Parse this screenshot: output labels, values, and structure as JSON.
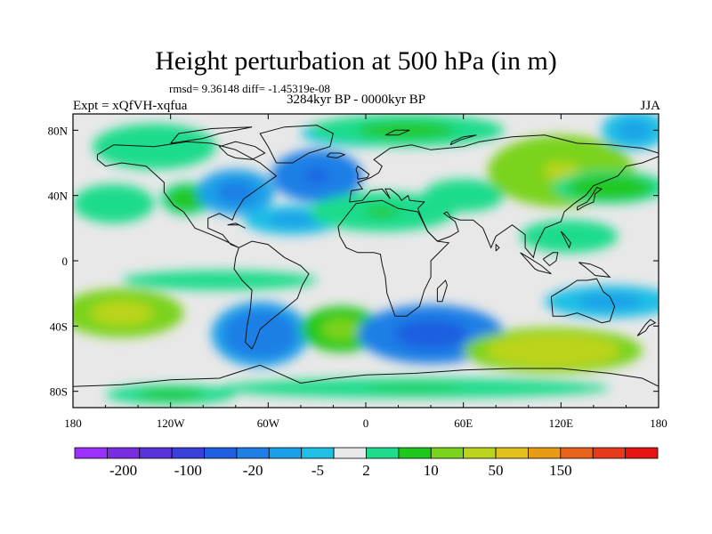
{
  "chart_data": {
    "type": "heatmap",
    "title": "Height perturbation at 500 hPa (in m)",
    "stats": "rmsd= 9.36148 diff= -1.45319e-08",
    "experiment": "Expt = xQfVH-xqfua",
    "period": "3284kyr BP - 0000kyr BP",
    "season": "JJA",
    "x_axis": {
      "ticks": [
        -180,
        -120,
        -60,
        0,
        60,
        120,
        180
      ],
      "labels": [
        "180",
        "120W",
        "60W",
        "0",
        "60E",
        "120E",
        "180"
      ]
    },
    "y_axis": {
      "ticks": [
        80,
        40,
        0,
        -40,
        -80
      ],
      "labels": [
        "80N",
        "40N",
        "0",
        "40S",
        "80S"
      ]
    },
    "xlim": [
      -180,
      180
    ],
    "ylim": [
      -90,
      90
    ],
    "colorbar": {
      "labels": [
        "-200",
        "-100",
        "-20",
        "-5",
        "2",
        "10",
        "50",
        "150"
      ],
      "colors": [
        "#9b30ff",
        "#7a2de0",
        "#5a32dc",
        "#3b3fdc",
        "#1f5fe0",
        "#1f7fe6",
        "#1aa0e8",
        "#1fbfe6",
        "#e8e8e8",
        "#1fdc8c",
        "#20c81e",
        "#7ad31e",
        "#bcd41c",
        "#e2c11b",
        "#e89b14",
        "#e8641c",
        "#e83a1a",
        "#e81414"
      ]
    },
    "anomaly_fields": [
      {
        "lon": -130,
        "lat": 70,
        "rx": 38,
        "ry": 14,
        "value": 5
      },
      {
        "lon": -155,
        "lat": 35,
        "rx": 25,
        "ry": 12,
        "value": 5
      },
      {
        "lon": -110,
        "lat": 38,
        "rx": 16,
        "ry": 10,
        "value": 9
      },
      {
        "lon": -80,
        "lat": 42,
        "rx": 24,
        "ry": 14,
        "value": -12
      },
      {
        "lon": -30,
        "lat": 52,
        "rx": 28,
        "ry": 16,
        "value": -20
      },
      {
        "lon": -45,
        "lat": 25,
        "rx": 30,
        "ry": 9,
        "value": -6
      },
      {
        "lon": 0,
        "lat": 78,
        "rx": 40,
        "ry": 8,
        "value": -6
      },
      {
        "lon": 25,
        "lat": 80,
        "rx": 60,
        "ry": 10,
        "value": 8
      },
      {
        "lon": 10,
        "lat": 30,
        "rx": 45,
        "ry": 12,
        "value": 6
      },
      {
        "lon": 60,
        "lat": 40,
        "rx": 25,
        "ry": 10,
        "value": 5
      },
      {
        "lon": 120,
        "lat": 55,
        "rx": 45,
        "ry": 22,
        "value": 22
      },
      {
        "lon": 150,
        "lat": 45,
        "rx": 35,
        "ry": 10,
        "value": 9
      },
      {
        "lon": 165,
        "lat": 80,
        "rx": 20,
        "ry": 12,
        "value": -6
      },
      {
        "lon": 125,
        "lat": 15,
        "rx": 30,
        "ry": 10,
        "value": 4
      },
      {
        "lon": -150,
        "lat": -32,
        "rx": 38,
        "ry": 15,
        "value": 28
      },
      {
        "lon": -65,
        "lat": -45,
        "rx": 30,
        "ry": 20,
        "value": -18
      },
      {
        "lon": -15,
        "lat": -42,
        "rx": 25,
        "ry": 14,
        "value": 14
      },
      {
        "lon": 40,
        "lat": -45,
        "rx": 45,
        "ry": 18,
        "value": -24
      },
      {
        "lon": 115,
        "lat": -55,
        "rx": 55,
        "ry": 14,
        "value": 30
      },
      {
        "lon": 150,
        "lat": -25,
        "rx": 40,
        "ry": 10,
        "value": -6
      },
      {
        "lon": -90,
        "lat": -12,
        "rx": 60,
        "ry": 6,
        "value": 5
      },
      {
        "lon": 30,
        "lat": -78,
        "rx": 120,
        "ry": 6,
        "value": 6
      },
      {
        "lon": -120,
        "lat": -82,
        "rx": 40,
        "ry": 6,
        "value": 8
      }
    ]
  }
}
